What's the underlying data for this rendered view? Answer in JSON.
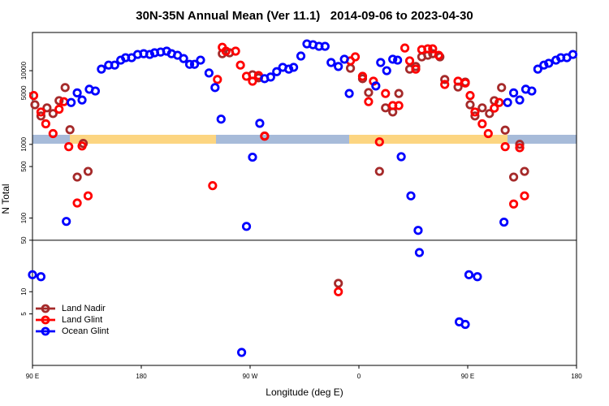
{
  "chart_data": {
    "type": "scatter",
    "title": "30N-35N Annual Mean (Ver 11.1)   2014-09-06 to 2023-04-30",
    "xlabel": "Longitude (deg E)",
    "ylabel": "N Total",
    "xlim": [
      90,
      540
    ],
    "xticks": [
      {
        "value": 90,
        "label": "90 E"
      },
      180,
      {
        "value": 270,
        "label": "90 W"
      },
      {
        "value": 360,
        "label": "0"
      },
      {
        "value": 450,
        "label": "90 E"
      },
      {
        "value": 540,
        "label": "180"
      }
    ],
    "ylim": [
      1,
      33000
    ],
    "log_y": true,
    "yticks": [
      5,
      10,
      50,
      100,
      500,
      1000,
      5000,
      10000
    ],
    "legend": "bottom-left",
    "series": [
      {
        "name": "Land Nadir",
        "color": "#a52a2a",
        "x": [
          92,
          97,
          102,
          107,
          112,
          117,
          121,
          127,
          132,
          136,
          247,
          253,
          272,
          277,
          282,
          343,
          353,
          363,
          368,
          377,
          382,
          388,
          393,
          402,
          407,
          412,
          417,
          421,
          427,
          431,
          442,
          448,
          452,
          456,
          462,
          468,
          472,
          478,
          481,
          488,
          493,
          497
        ],
        "values": [
          3450,
          2430,
          3130,
          2620,
          3920,
          5900,
          1580,
          360,
          1030,
          430,
          17000,
          17500,
          8800,
          8000,
          1300,
          13,
          10800,
          7800,
          5050,
          430,
          3130,
          2750,
          4900,
          10500,
          11400,
          15400,
          16200,
          17000,
          15400,
          7600,
          6000,
          7000,
          3450,
          2430,
          3130,
          2620,
          3920,
          5900,
          1560,
          360,
          1000,
          430
        ]
      },
      {
        "name": "Land Glint",
        "color": "#ff0000",
        "x": [
          91,
          97,
          101,
          107,
          112,
          116,
          120,
          127,
          131,
          136,
          239,
          243,
          247,
          250,
          258,
          262,
          267,
          272,
          277,
          282,
          343,
          353,
          357,
          363,
          368,
          372,
          377,
          382,
          388,
          393,
          398,
          402,
          407,
          412,
          417,
          421,
          426,
          431,
          442,
          448,
          452,
          456,
          462,
          467,
          472,
          476,
          481,
          488,
          493,
          497
        ],
        "values": [
          4600,
          2750,
          1900,
          1400,
          3000,
          3800,
          930,
          160,
          950,
          200,
          275,
          7600,
          20800,
          18400,
          18400,
          11900,
          8400,
          7200,
          8600,
          1290,
          10,
          13600,
          15400,
          8400,
          3800,
          7200,
          1080,
          4900,
          3360,
          3360,
          20300,
          13600,
          10500,
          19300,
          19800,
          19800,
          16200,
          6500,
          7200,
          6800,
          4600,
          2750,
          1900,
          1400,
          3100,
          3700,
          930,
          155,
          900,
          200
        ]
      },
      {
        "name": "Ocean Glint",
        "color": "#0000ff",
        "x": [
          90,
          97,
          118,
          122,
          127,
          131,
          137,
          142,
          147,
          153,
          158,
          163,
          167,
          172,
          177,
          182,
          187,
          191,
          196,
          201,
          205,
          210,
          215,
          220,
          224,
          229,
          236,
          241,
          246,
          263,
          267,
          272,
          278,
          282,
          287,
          292,
          297,
          302,
          306,
          312,
          317,
          322,
          327,
          332,
          337,
          343,
          348,
          352,
          374,
          378,
          383,
          388,
          392,
          395,
          403,
          409,
          410,
          443,
          448,
          451,
          458,
          480,
          483,
          488,
          493,
          498,
          503,
          508,
          513,
          517,
          523,
          527,
          532,
          537
        ],
        "values": [
          17,
          16,
          90,
          3700,
          5000,
          4000,
          5600,
          5300,
          10500,
          11900,
          11900,
          13900,
          15000,
          15000,
          16600,
          17000,
          16600,
          17500,
          17900,
          18400,
          17000,
          16200,
          14600,
          12200,
          12200,
          13900,
          9300,
          5900,
          2200,
          1.5,
          77,
          670,
          1930,
          7800,
          8200,
          9700,
          11100,
          10500,
          11100,
          15800,
          23100,
          22500,
          21400,
          21400,
          12900,
          11400,
          14300,
          4900,
          6200,
          12900,
          10000,
          14300,
          13900,
          680,
          200,
          68,
          34,
          3.9,
          3.6,
          17,
          16,
          88,
          3700,
          5000,
          4000,
          5600,
          5300,
          10500,
          11900,
          12600,
          13900,
          15000,
          15000,
          16600
        ]
      }
    ]
  }
}
